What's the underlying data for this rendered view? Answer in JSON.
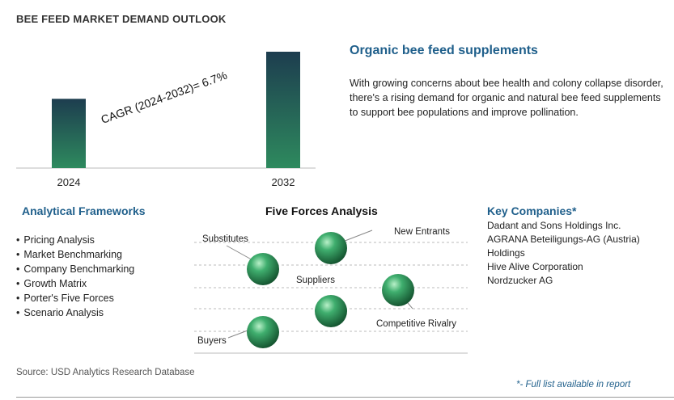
{
  "header": {
    "title": "BEE FEED MARKET DEMAND OUTLOOK"
  },
  "chart_data": {
    "type": "bar",
    "categories": [
      "2024",
      "2032"
    ],
    "values": [
      1.0,
      1.68
    ],
    "annotation": "CAGR (2024-2032)=   6.7%",
    "colors": {
      "bar_top": "#1d3d4f",
      "bar_bottom": "#2e8a5e"
    }
  },
  "highlight": {
    "title": "Organic bee feed supplements",
    "body": "With growing concerns about bee health and colony collapse disorder, there's a rising demand for organic and natural bee feed supplements to support bee populations and improve pollination."
  },
  "frameworks": {
    "title": "Analytical Frameworks",
    "items": [
      "Pricing Analysis",
      "Market Benchmarking",
      "Company Benchmarking",
      "Growth Matrix",
      "Porter's Five Forces",
      "Scenario Analysis"
    ]
  },
  "five_forces": {
    "title": "Five Forces Analysis",
    "labels": {
      "substitutes": "Substitutes",
      "new_entrants": "New Entrants",
      "suppliers": "Suppliers",
      "competitive_rivalry": "Competitive Rivalry",
      "buyers": "Buyers"
    },
    "sphere_color": "#2e8a5e"
  },
  "companies": {
    "title": "Key Companies*",
    "items": [
      "Dadant and Sons Holdings Inc.",
      "AGRANA Beteiligungs-AG (Austria) Holdings",
      "Hive Alive Corporation",
      "Nordzucker AG"
    ]
  },
  "footer": {
    "source": "Source: USD Analytics Research Database",
    "note": "*- Full list available in report"
  }
}
